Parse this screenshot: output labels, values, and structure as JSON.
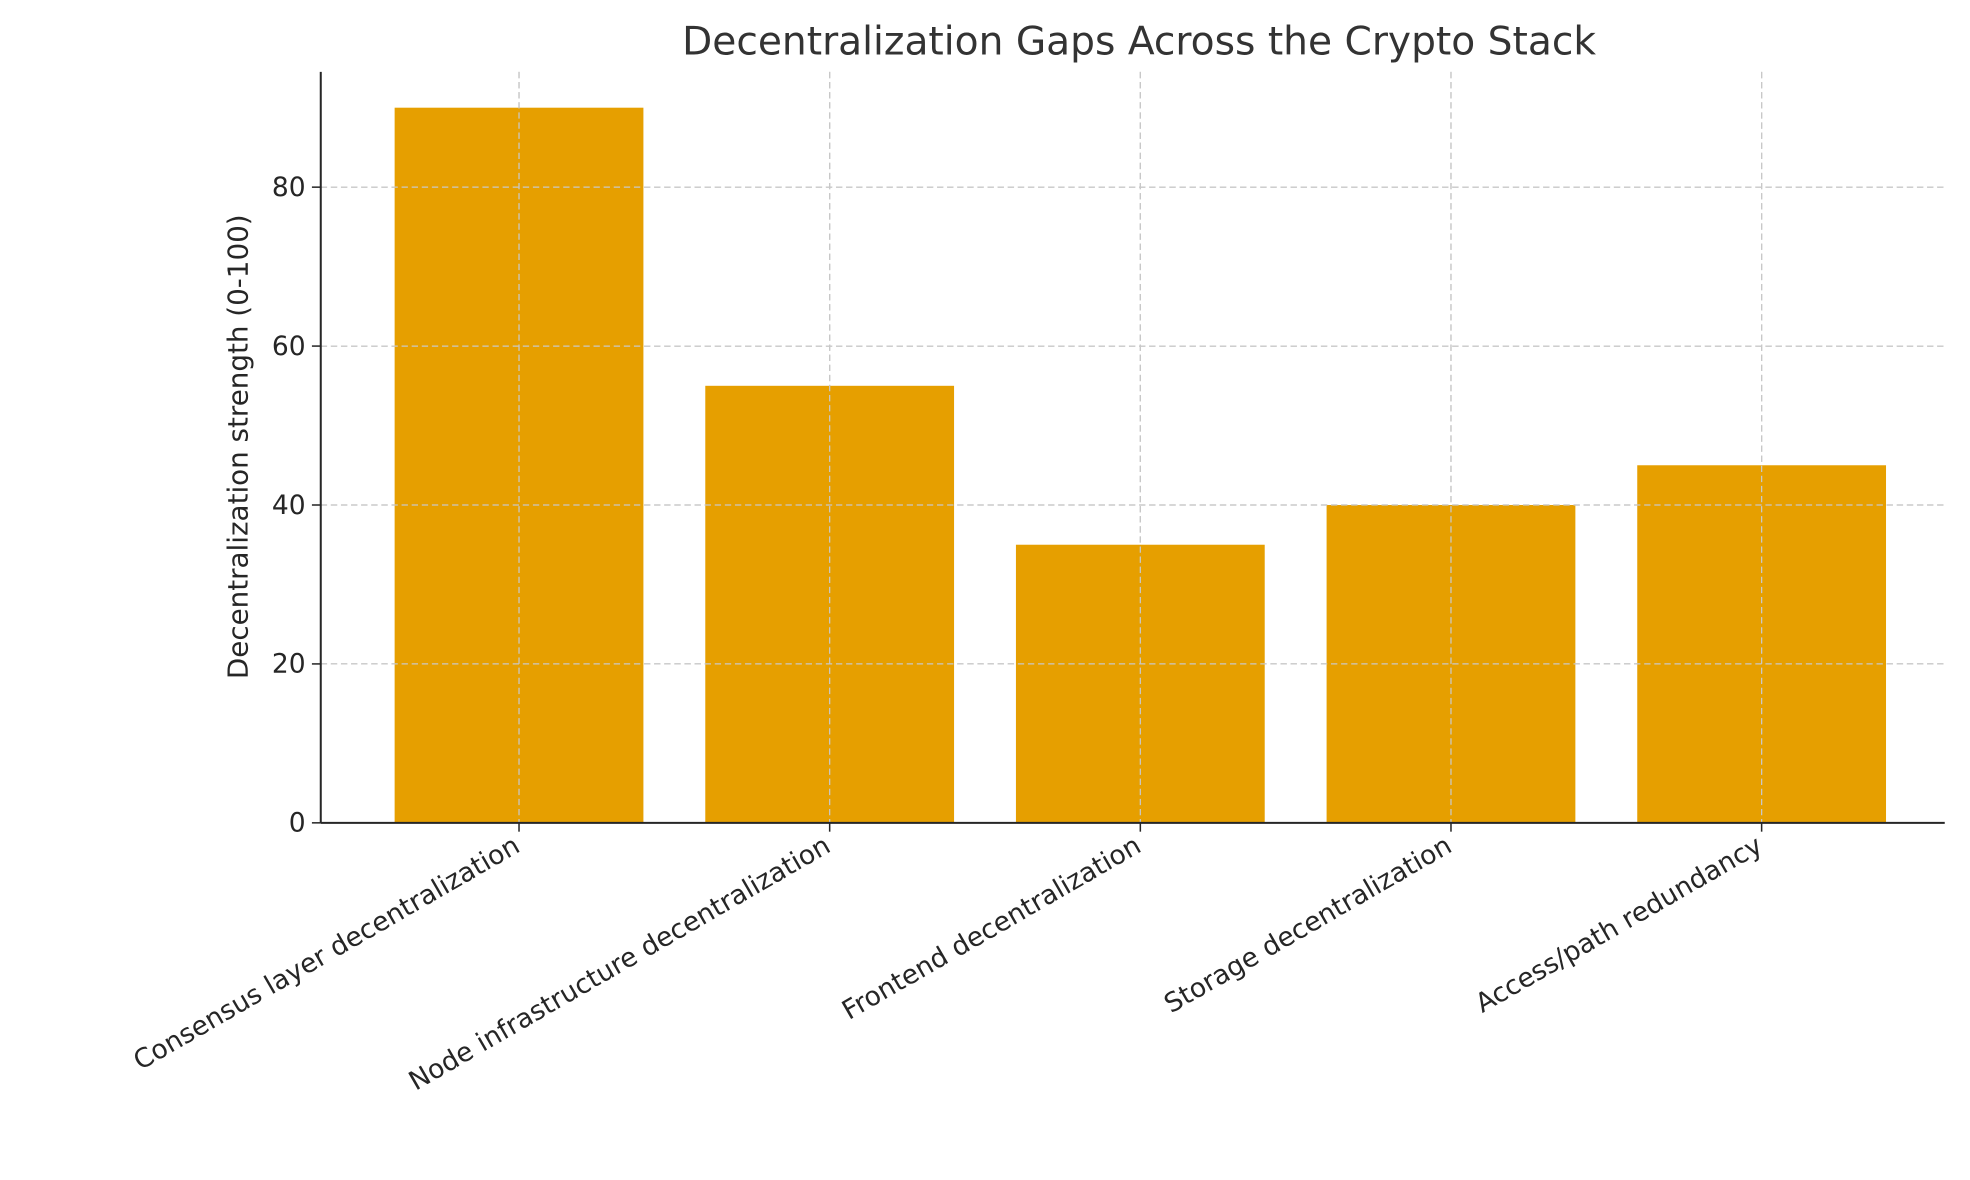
{
  "chart_data": {
    "type": "bar",
    "title": "Decentralization Gaps Across the Crypto Stack",
    "xlabel": "",
    "ylabel": "Decentralization strength (0-100)",
    "categories": [
      "Consensus layer decentralization",
      "Node infrastructure decentralization",
      "Frontend decentralization",
      "Storage decentralization",
      "Access/path redundancy"
    ],
    "values": [
      90,
      55,
      35,
      40,
      45
    ],
    "ylim": [
      0,
      94.5
    ],
    "yticks": [
      0,
      20,
      40,
      60,
      80
    ],
    "grid": true,
    "bar_color": "#E69F00",
    "x_tick_rotation": 30
  }
}
